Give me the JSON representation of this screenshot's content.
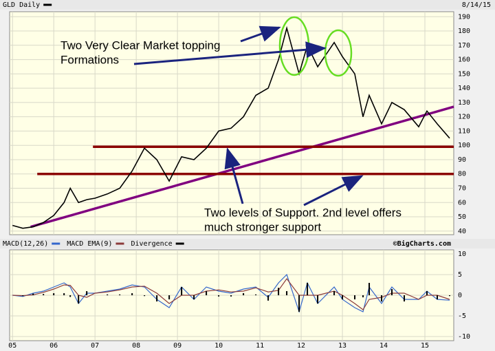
{
  "chart_data": [
    {
      "type": "line",
      "subtitle": "8/14/15",
      "x": [
        2005.0,
        2005.25,
        2005.5,
        2005.75,
        2006.0,
        2006.25,
        2006.4,
        2006.6,
        2006.8,
        2007.0,
        2007.3,
        2007.6,
        2007.9,
        2008.2,
        2008.5,
        2008.8,
        2009.1,
        2009.4,
        2009.7,
        2010.0,
        2010.3,
        2010.6,
        2010.9,
        2011.2,
        2011.45,
        2011.65,
        2011.95,
        2012.15,
        2012.4,
        2012.8,
        2013.0,
        2013.3,
        2013.5,
        2013.65,
        2013.95,
        2014.2,
        2014.5,
        2014.85,
        2015.05,
        2015.3,
        2015.6
      ],
      "series": [
        {
          "name": "GLD Daily",
          "color": "#000000",
          "values": [
            44,
            42,
            43,
            46,
            51,
            60,
            70,
            60,
            62,
            63,
            66,
            70,
            82,
            98,
            90,
            75,
            92,
            90,
            98,
            110,
            112,
            120,
            135,
            140,
            160,
            182,
            150,
            170,
            155,
            172,
            162,
            150,
            120,
            135,
            115,
            130,
            125,
            113,
            124,
            115,
            105
          ]
        }
      ],
      "xlim": [
        2004.93,
        2015.7
      ],
      "xticks": [
        {
          "value": 2005,
          "label": "05"
        },
        {
          "value": 2006,
          "label": "06"
        },
        {
          "value": 2007,
          "label": "07"
        },
        {
          "value": 2008,
          "label": "08"
        },
        {
          "value": 2009,
          "label": "09"
        },
        {
          "value": 2010,
          "label": "10"
        },
        {
          "value": 2011,
          "label": "11"
        },
        {
          "value": 2012,
          "label": "12"
        },
        {
          "value": 2013,
          "label": "13"
        },
        {
          "value": 2014,
          "label": "14"
        },
        {
          "value": 2015,
          "label": "15"
        }
      ],
      "ylim": [
        37.5,
        193.5
      ],
      "yticks": [
        40,
        50,
        60,
        70,
        80,
        90,
        100,
        110,
        120,
        130,
        140,
        150,
        160,
        170,
        180,
        190
      ],
      "grid": true,
      "overlays": [
        {
          "x": [
            2005.44,
            2015.7
          ],
          "values": [
            43,
            127
          ],
          "color": "#800080"
        },
        {
          "x": [
            2006.95,
            2015.7
          ],
          "values": [
            99,
            99
          ],
          "color": "#8b0000"
        },
        {
          "x": [
            2005.6,
            2015.7
          ],
          "values": [
            80,
            80
          ],
          "color": "#8b0000"
        }
      ],
      "annotations": [
        {
          "lines": [
            "Two Very Clear Market topping",
            "Formations"
          ]
        },
        {
          "lines": [
            "Two levels of Support. 2nd level offers",
            "much stronger support"
          ]
        }
      ]
    },
    {
      "type": "macd",
      "credit": "©BigCharts.com",
      "x": [
        2005.0,
        2005.25,
        2005.5,
        2005.75,
        2006.0,
        2006.25,
        2006.4,
        2006.6,
        2006.8,
        2007.0,
        2007.3,
        2007.6,
        2007.9,
        2008.2,
        2008.5,
        2008.8,
        2009.1,
        2009.4,
        2009.7,
        2010.0,
        2010.3,
        2010.6,
        2010.9,
        2011.2,
        2011.45,
        2011.65,
        2011.95,
        2012.15,
        2012.4,
        2012.8,
        2013.0,
        2013.3,
        2013.5,
        2013.65,
        2013.95,
        2014.2,
        2014.5,
        2014.85,
        2015.05,
        2015.3,
        2015.6
      ],
      "series": [
        {
          "name": "MACD(12,26)",
          "color": "#3366cc",
          "values": [
            0,
            -0.3,
            0.5,
            1,
            2,
            3,
            2,
            -2,
            0.5,
            0.5,
            1,
            1.5,
            2.5,
            2,
            -1,
            -3,
            2,
            -1,
            2,
            1,
            0.5,
            1.5,
            2,
            -0.5,
            3,
            5,
            -4,
            3,
            -2,
            2,
            -1,
            -3,
            -4,
            2,
            -2,
            2,
            -1,
            -1,
            1,
            -1,
            -1.2
          ]
        },
        {
          "name": "MACD EMA(9)",
          "color": "#8b3a3a",
          "values": [
            0,
            -0.1,
            0.1,
            0.7,
            1.5,
            2.5,
            2.4,
            0,
            -0.5,
            0.5,
            0.8,
            1.3,
            2,
            2.2,
            0.5,
            -2,
            0,
            0,
            1,
            1.3,
            0.8,
            1,
            1.8,
            0.8,
            1.2,
            4,
            0,
            0,
            0,
            1,
            0,
            -2,
            -3.5,
            -1,
            -0.5,
            0.5,
            0.5,
            -1,
            0,
            0,
            -1
          ]
        },
        {
          "name": "Divergence",
          "color": "#000000",
          "type": "bar",
          "values": [
            0,
            -0.2,
            0.4,
            0.3,
            0.5,
            0.5,
            -0.4,
            -2,
            1,
            0,
            0.2,
            0.2,
            0.5,
            -0.2,
            -1.5,
            -1,
            2,
            -1,
            1,
            -0.3,
            -0.3,
            0.5,
            0.2,
            -1.3,
            1.8,
            1,
            -4,
            3,
            -2,
            1,
            -1,
            -1,
            -0.5,
            3,
            -1.5,
            1.5,
            -1.5,
            0,
            1,
            -1,
            -0.2
          ]
        }
      ],
      "xlim": [
        2004.93,
        2015.7
      ],
      "xticks": [
        {
          "value": 2005,
          "label": "05"
        },
        {
          "value": 2006,
          "label": "06"
        },
        {
          "value": 2007,
          "label": "07"
        },
        {
          "value": 2008,
          "label": "08"
        },
        {
          "value": 2009,
          "label": "09"
        },
        {
          "value": 2010,
          "label": "10"
        },
        {
          "value": 2011,
          "label": "11"
        },
        {
          "value": 2012,
          "label": "12"
        },
        {
          "value": 2013,
          "label": "13"
        },
        {
          "value": 2014,
          "label": "14"
        },
        {
          "value": 2015,
          "label": "15"
        }
      ],
      "ylim": [
        -11,
        11
      ],
      "yticks": [
        10,
        5,
        0,
        -5,
        -10
      ],
      "grid": true
    }
  ]
}
